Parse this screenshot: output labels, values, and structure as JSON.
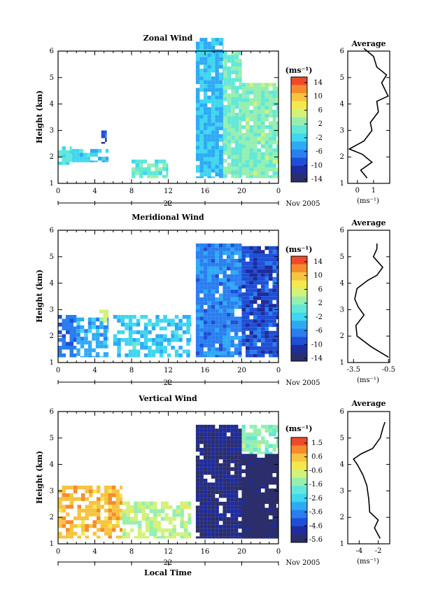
{
  "common": {
    "date_label": "22",
    "month_label": "Nov 2005",
    "ylabel": "Height (km)",
    "time_ticks": [
      "0",
      "4",
      "8",
      "12",
      "16",
      "20",
      "0"
    ],
    "height_ticks": [
      "1",
      "2",
      "3",
      "4",
      "5",
      "6"
    ],
    "unit_label": "(ms⁻¹)",
    "xlabel_bottom": "Local Time",
    "avg_title": "Average"
  },
  "colormap": [
    "#2b2e6b",
    "#1e2c9c",
    "#1f4fd6",
    "#2a7ef0",
    "#2eaaf4",
    "#3fd6f0",
    "#62e8d8",
    "#96efb0",
    "#d2f27a",
    "#f3e94e",
    "#f7c440",
    "#f58b2e",
    "#ee4a2a"
  ],
  "chart_data": [
    {
      "type": "heatmap",
      "title": "Zonal Wind",
      "xlabel": "",
      "ylabel": "Height (km)",
      "xlim": [
        0,
        24
      ],
      "ylim": [
        1,
        6
      ],
      "colorbar": {
        "ticks": [
          "14",
          "10",
          "6",
          "2",
          "-2",
          "-6",
          "-10",
          "-14"
        ],
        "range": [
          -16,
          16
        ]
      },
      "regions": [
        {
          "x": [
            0,
            1.5
          ],
          "y": [
            1.7,
            2.4
          ],
          "value": -1
        },
        {
          "x": [
            1.5,
            3.5
          ],
          "y": [
            1.8,
            2.3
          ],
          "value": -2
        },
        {
          "x": [
            4.7,
            5.3
          ],
          "y": [
            2.5,
            3.0
          ],
          "value": -10
        },
        {
          "x": [
            3.5,
            5.5
          ],
          "y": [
            1.8,
            2.3
          ],
          "value": -3
        },
        {
          "x": [
            8,
            12
          ],
          "y": [
            1.2,
            1.9
          ],
          "value": 0
        },
        {
          "x": [
            15,
            18
          ],
          "y": [
            1.2,
            6.5
          ],
          "value": -4
        },
        {
          "x": [
            18,
            20
          ],
          "y": [
            1.2,
            6.0
          ],
          "value": 1
        },
        {
          "x": [
            20,
            24
          ],
          "y": [
            1.2,
            4.8
          ],
          "value": 2
        }
      ],
      "average": {
        "xlabel": "(ms⁻¹)",
        "xticks": [
          "0",
          "1"
        ],
        "xlim": [
          -0.6,
          2.0
        ],
        "points": [
          [
            0.6,
            1.2
          ],
          [
            0.2,
            1.5
          ],
          [
            0.9,
            1.8
          ],
          [
            0.3,
            2.1
          ],
          [
            -0.5,
            2.3
          ],
          [
            0.4,
            2.6
          ],
          [
            0.9,
            3.0
          ],
          [
            0.8,
            3.3
          ],
          [
            1.3,
            3.7
          ],
          [
            1.2,
            4.1
          ],
          [
            1.9,
            4.3
          ],
          [
            1.5,
            4.8
          ],
          [
            1.8,
            5.1
          ],
          [
            1.2,
            5.4
          ],
          [
            1.0,
            5.8
          ],
          [
            0.4,
            6.1
          ]
        ]
      }
    },
    {
      "type": "heatmap",
      "title": "Meridional Wind",
      "xlabel": "",
      "ylabel": "Height (km)",
      "xlim": [
        0,
        24
      ],
      "ylim": [
        1,
        6
      ],
      "colorbar": {
        "ticks": [
          "14",
          "10",
          "6",
          "2",
          "-2",
          "-6",
          "-10",
          "-14"
        ],
        "range": [
          -16,
          16
        ]
      },
      "regions": [
        {
          "x": [
            0,
            2
          ],
          "y": [
            1.2,
            2.8
          ],
          "value": -8
        },
        {
          "x": [
            2,
            5.5
          ],
          "y": [
            1.2,
            2.7
          ],
          "value": -5
        },
        {
          "x": [
            4.5,
            5.5
          ],
          "y": [
            2.5,
            3.0
          ],
          "value": 4
        },
        {
          "x": [
            6,
            14.5
          ],
          "y": [
            1.2,
            2.8
          ],
          "value": -3
        },
        {
          "x": [
            15,
            20
          ],
          "y": [
            1.2,
            5.5
          ],
          "value": -7
        },
        {
          "x": [
            20,
            24
          ],
          "y": [
            1.2,
            5.4
          ],
          "value": -10
        }
      ],
      "average": {
        "xlabel": "(ms⁻¹)",
        "xticks": [
          "-3.5",
          "-0.5"
        ],
        "xlim": [
          -4.0,
          -0.4
        ],
        "points": [
          [
            -0.5,
            1.2
          ],
          [
            -2.0,
            1.6
          ],
          [
            -3.2,
            2.0
          ],
          [
            -3.3,
            2.4
          ],
          [
            -2.6,
            2.8
          ],
          [
            -3.1,
            3.1
          ],
          [
            -3.4,
            3.4
          ],
          [
            -3.2,
            3.8
          ],
          [
            -2.3,
            4.1
          ],
          [
            -1.5,
            4.3
          ],
          [
            -1.0,
            4.6
          ],
          [
            -1.8,
            5.0
          ],
          [
            -1.5,
            5.3
          ],
          [
            -1.5,
            5.5
          ]
        ]
      }
    },
    {
      "type": "heatmap",
      "title": "Vertical Wind",
      "xlabel": "Local Time",
      "ylabel": "Height (km)",
      "xlim": [
        0,
        24
      ],
      "ylim": [
        1,
        6
      ],
      "colorbar": {
        "ticks": [
          "1.5",
          "0.6",
          "-0.6",
          "-1.6",
          "-2.6",
          "-3.6",
          "-4.6",
          "-5.6"
        ],
        "range": [
          -6.2,
          2.0
        ]
      },
      "regions": [
        {
          "x": [
            0,
            7
          ],
          "y": [
            1.2,
            3.2
          ],
          "value": 0.5
        },
        {
          "x": [
            7,
            14.5
          ],
          "y": [
            1.2,
            2.6
          ],
          "value": -1.0
        },
        {
          "x": [
            15,
            20
          ],
          "y": [
            1.2,
            5.5
          ],
          "value": -5.6
        },
        {
          "x": [
            20,
            24
          ],
          "y": [
            1.2,
            4.4
          ],
          "value": -6.0
        },
        {
          "x": [
            20,
            24
          ],
          "y": [
            4.4,
            5.5
          ],
          "value": -1.6
        }
      ],
      "average": {
        "xlabel": "(ms⁻¹)",
        "xticks": [
          "-4",
          "-2"
        ],
        "xlim": [
          -5.2,
          -0.8
        ],
        "points": [
          [
            -1.8,
            1.2
          ],
          [
            -2.4,
            1.6
          ],
          [
            -2.0,
            1.9
          ],
          [
            -2.9,
            2.2
          ],
          [
            -3.0,
            2.7
          ],
          [
            -3.2,
            3.2
          ],
          [
            -3.6,
            3.6
          ],
          [
            -4.2,
            4.0
          ],
          [
            -4.6,
            4.2
          ],
          [
            -3.8,
            4.4
          ],
          [
            -2.6,
            4.6
          ],
          [
            -1.8,
            5.0
          ],
          [
            -1.5,
            5.4
          ],
          [
            -1.3,
            5.6
          ]
        ]
      }
    }
  ]
}
